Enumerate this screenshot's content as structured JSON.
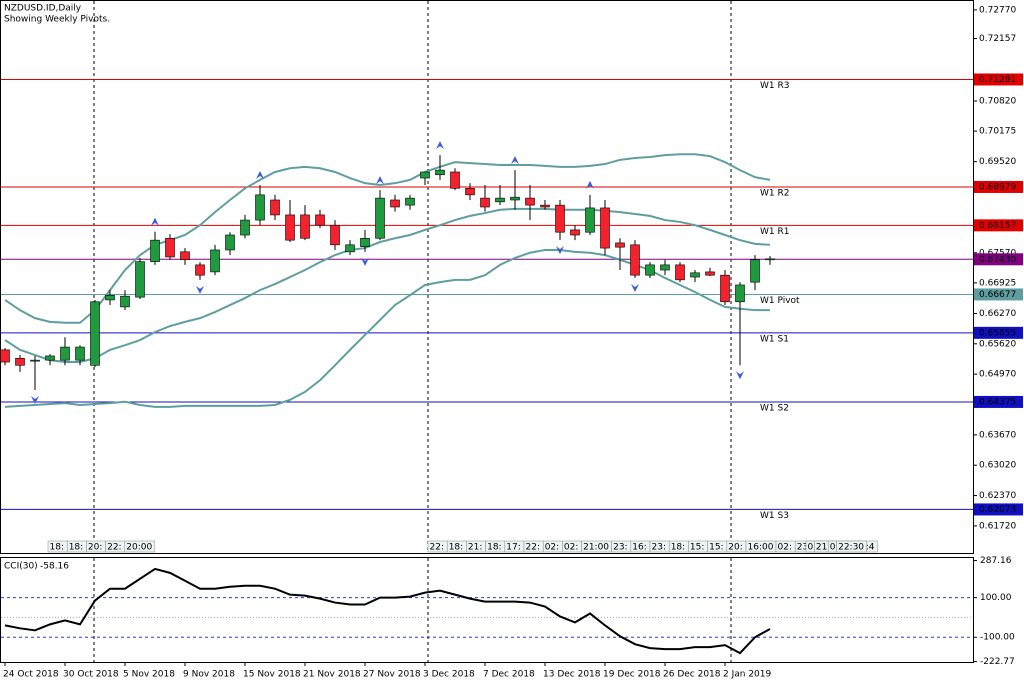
{
  "chart_data": [
    {
      "type": "candlestick",
      "title": "NZDUSD.ID,Daily",
      "subtitle": "Showing Weekly Pivots.",
      "categories": [
        "24 Oct 2018",
        null,
        null,
        null,
        "30 Oct 2018",
        null,
        null,
        null,
        "5 Nov 2018",
        null,
        null,
        null,
        "9 Nov 2018",
        null,
        null,
        null,
        "15 Nov 2018",
        null,
        null,
        null,
        "21 Nov 2018",
        null,
        null,
        null,
        "27 Nov 2018",
        null,
        null,
        null,
        "3 Dec 2018",
        null,
        null,
        null,
        "7 Dec 2018",
        null,
        null,
        null,
        "13 Dec 2018",
        null,
        null,
        null,
        "19 Dec 2018",
        null,
        null,
        null,
        "26 Dec 2018",
        null,
        null,
        null,
        "2 Jan 2019",
        null,
        null,
        null
      ],
      "open": [
        0.6549,
        0.6531,
        0.6525,
        0.6527,
        0.6527,
        0.6527,
        0.6516,
        0.6656,
        0.6641,
        0.6662,
        0.6738,
        0.6788,
        0.6759,
        0.6731,
        0.6716,
        0.6763,
        0.6795,
        0.6827,
        0.687,
        0.6838,
        0.6838,
        0.6838,
        0.6816,
        0.6759,
        0.677,
        0.6788,
        0.687,
        0.6859,
        0.6917,
        0.6924,
        0.693,
        0.6895,
        0.6874,
        0.6866,
        0.687,
        0.6874,
        0.6859,
        0.6859,
        0.6806,
        0.6801,
        0.6853,
        0.6778,
        0.6774,
        0.6709,
        0.672,
        0.6731,
        0.6705,
        0.6716,
        0.6709,
        0.6652,
        0.6694,
        0.6742
      ],
      "high": [
        0.6553,
        0.6538,
        0.6536,
        0.654,
        0.6576,
        0.6559,
        0.6656,
        0.6677,
        0.6677,
        0.6746,
        0.6802,
        0.6797,
        0.6767,
        0.6737,
        0.6774,
        0.6801,
        0.6838,
        0.6902,
        0.6881,
        0.687,
        0.6859,
        0.6849,
        0.6827,
        0.6784,
        0.6806,
        0.6891,
        0.6881,
        0.6881,
        0.693,
        0.6966,
        0.6938,
        0.6906,
        0.6902,
        0.6902,
        0.6934,
        0.6902,
        0.687,
        0.687,
        0.6816,
        0.6881,
        0.687,
        0.6788,
        0.6784,
        0.6737,
        0.6742,
        0.6737,
        0.672,
        0.6725,
        0.672,
        0.6694,
        0.6752,
        0.675
      ],
      "low": [
        0.6516,
        0.6502,
        0.6463,
        0.6516,
        0.6516,
        0.6516,
        0.6512,
        0.6645,
        0.6634,
        0.6658,
        0.6731,
        0.6742,
        0.6731,
        0.6699,
        0.6709,
        0.6752,
        0.6788,
        0.6816,
        0.6827,
        0.678,
        0.6784,
        0.681,
        0.6763,
        0.6752,
        0.6759,
        0.6784,
        0.6845,
        0.6849,
        0.6902,
        0.6913,
        0.6891,
        0.687,
        0.6845,
        0.6859,
        0.6849,
        0.6827,
        0.6849,
        0.6784,
        0.6784,
        0.6795,
        0.6752,
        0.672,
        0.6703,
        0.6703,
        0.6709,
        0.6694,
        0.6694,
        0.6707,
        0.6645,
        0.6516,
        0.6677,
        0.6731
      ],
      "close": [
        0.6523,
        0.6516,
        0.6527,
        0.6536,
        0.6555,
        0.6555,
        0.6652,
        0.6666,
        0.6664,
        0.6738,
        0.6784,
        0.6748,
        0.6742,
        0.6709,
        0.6763,
        0.6795,
        0.6827,
        0.6881,
        0.6838,
        0.6784,
        0.6788,
        0.6816,
        0.6774,
        0.6774,
        0.6788,
        0.6874,
        0.6855,
        0.6874,
        0.693,
        0.6934,
        0.6895,
        0.6881,
        0.6855,
        0.6874,
        0.6876,
        0.6859,
        0.6855,
        0.6801,
        0.6795,
        0.6853,
        0.6767,
        0.6769,
        0.6709,
        0.6731,
        0.6731,
        0.6699,
        0.6714,
        0.6709,
        0.6652,
        0.6688,
        0.6742,
        0.6744
      ],
      "up_color": "#1f9a3f",
      "down_color": "#f5222d",
      "bands": [
        {
          "color": "#5f9ea0",
          "values": [
            0.6656,
            0.6634,
            0.6617,
            0.6609,
            0.6607,
            0.6607,
            0.6634,
            0.6677,
            0.672,
            0.6752,
            0.6774,
            0.6784,
            0.6795,
            0.6816,
            0.6844,
            0.687,
            0.6895,
            0.6913,
            0.693,
            0.6938,
            0.6941,
            0.6938,
            0.693,
            0.6917,
            0.6906,
            0.6902,
            0.6906,
            0.6913,
            0.693,
            0.6941,
            0.6951,
            0.6949,
            0.6947,
            0.6945,
            0.6945,
            0.6945,
            0.6943,
            0.6941,
            0.6941,
            0.6943,
            0.6947,
            0.6956,
            0.696,
            0.6962,
            0.6966,
            0.6968,
            0.6968,
            0.6964,
            0.6951,
            0.6934,
            0.6919,
            0.6913
          ]
        },
        {
          "color": "#5f9ea0",
          "values": [
            0.657,
            0.6549,
            0.6538,
            0.6527,
            0.6523,
            0.6523,
            0.6531,
            0.6549,
            0.6559,
            0.657,
            0.6587,
            0.66,
            0.6609,
            0.6617,
            0.663,
            0.6645,
            0.666,
            0.6677,
            0.669,
            0.6705,
            0.672,
            0.6737,
            0.6752,
            0.6763,
            0.6767,
            0.678,
            0.6788,
            0.6795,
            0.6806,
            0.6816,
            0.6827,
            0.6836,
            0.6842,
            0.6849,
            0.6851,
            0.6851,
            0.6851,
            0.6849,
            0.6849,
            0.6849,
            0.6847,
            0.6844,
            0.684,
            0.6836,
            0.6827,
            0.6823,
            0.6816,
            0.6806,
            0.6795,
            0.6784,
            0.6776,
            0.6774
          ]
        },
        {
          "color": "#5f9ea0",
          "values": [
            0.6427,
            0.6429,
            0.6431,
            0.6433,
            0.6435,
            0.6431,
            0.6433,
            0.6435,
            0.6438,
            0.6431,
            0.6427,
            0.6427,
            0.6429,
            0.6429,
            0.6429,
            0.6429,
            0.6429,
            0.6429,
            0.6431,
            0.6442,
            0.6459,
            0.6484,
            0.6516,
            0.6549,
            0.6581,
            0.6613,
            0.6645,
            0.6666,
            0.6688,
            0.6694,
            0.6699,
            0.6699,
            0.6709,
            0.6731,
            0.6746,
            0.6757,
            0.6763,
            0.6763,
            0.6759,
            0.6757,
            0.6752,
            0.6742,
            0.6731,
            0.672,
            0.6703,
            0.6688,
            0.6673,
            0.6656,
            0.6641,
            0.6637,
            0.6634,
            0.6634
          ]
        }
      ],
      "fractal_color": "#3b5bdb",
      "fractal_up": [
        null,
        null,
        null,
        null,
        null,
        null,
        null,
        null,
        null,
        null,
        0.6802,
        null,
        null,
        null,
        null,
        null,
        null,
        0.6902,
        null,
        null,
        null,
        null,
        null,
        null,
        null,
        0.6891,
        null,
        null,
        null,
        0.6966,
        null,
        null,
        null,
        null,
        0.6934,
        null,
        null,
        null,
        null,
        0.6881,
        null,
        null,
        null,
        null,
        null,
        null,
        null,
        null,
        null,
        null,
        null,
        null
      ],
      "fractal_down": [
        null,
        null,
        0.6463,
        null,
        null,
        null,
        null,
        null,
        null,
        null,
        null,
        null,
        null,
        0.6699,
        null,
        null,
        null,
        null,
        null,
        null,
        null,
        null,
        null,
        null,
        0.6759,
        null,
        null,
        null,
        null,
        null,
        null,
        null,
        null,
        null,
        null,
        null,
        null,
        0.6784,
        null,
        null,
        null,
        null,
        0.6703,
        null,
        null,
        null,
        null,
        null,
        null,
        0.6516,
        null,
        null
      ],
      "pivots": [
        {
          "name": "W1 R3",
          "value": 0.71281,
          "color": "#e00000",
          "text_color": "#ffffff"
        },
        {
          "name": "W1 R2",
          "value": 0.68979,
          "color": "#e00000",
          "text_color": "#ffffff"
        },
        {
          "name": "W1 R1",
          "value": 0.68157,
          "color": "#e00000",
          "text_color": "#ffffff"
        },
        {
          "name": "W1 Pivot",
          "value": 0.66677,
          "color": "#5f9ea0",
          "text_color": "#000000"
        },
        {
          "name": "W1 S1",
          "value": 0.65855,
          "color": "#1010c0",
          "text_color": "#ffffff"
        },
        {
          "name": "W1 S2",
          "value": 0.64375,
          "color": "#1010c0",
          "text_color": "#ffffff"
        },
        {
          "name": "W1 S3",
          "value": 0.62073,
          "color": "#1010c0",
          "text_color": "#ffffff"
        }
      ],
      "current_price": {
        "value": 0.6743,
        "label": "0.67430",
        "color": "#800080"
      },
      "time_labels": [
        [
          "18:",
          "18:",
          "20:",
          "22:",
          "20:00"
        ],
        [
          "22:",
          "18:",
          "21:",
          "18:",
          "17:",
          "22:",
          "02:",
          "02:",
          "21:00",
          "23:",
          "16:",
          "23:",
          "18:",
          "15:",
          "15:",
          "20:",
          "16:00",
          "02:",
          "23:",
          "22:",
          "22:",
          "19:4"
        ],
        [
          "0",
          "21",
          "0",
          "22:30"
        ]
      ],
      "ylim": [
        0.6114,
        0.7294
      ],
      "yticks": [
        {
          "value": 0.7277,
          "label": "0.72770"
        },
        {
          "value": 0.72157,
          "label": "0.72157"
        },
        {
          "value": 0.7082,
          "label": "0.70820"
        },
        {
          "value": 0.70175,
          "label": "0.70175"
        },
        {
          "value": 0.6952,
          "label": "0.69520"
        },
        {
          "value": 0.6757,
          "label": "0.67570"
        },
        {
          "value": 0.66925,
          "label": "0.66925"
        },
        {
          "value": 0.6627,
          "label": "0.66270"
        },
        {
          "value": 0.6562,
          "label": "0.65620"
        },
        {
          "value": 0.6497,
          "label": "0.64970"
        },
        {
          "value": 0.6367,
          "label": "0.63670"
        },
        {
          "value": 0.6302,
          "label": "0.63020"
        },
        {
          "value": 0.6237,
          "label": "0.62370"
        },
        {
          "value": 0.6172,
          "label": "0.61720"
        }
      ]
    },
    {
      "type": "line",
      "title": "CCI(30)",
      "series": [
        {
          "color": "#000000",
          "values": [
            -40,
            -55,
            -65,
            -35,
            -15,
            -35,
            85,
            145,
            145,
            195,
            245,
            225,
            185,
            145,
            145,
            155,
            160,
            160,
            145,
            115,
            110,
            95,
            75,
            65,
            65,
            100,
            100,
            105,
            125,
            135,
            115,
            95,
            80,
            80,
            80,
            75,
            55,
            5,
            -25,
            20,
            -40,
            -95,
            -135,
            -155,
            -160,
            -160,
            -150,
            -150,
            -140,
            -180,
            -100,
            -58.16
          ]
        }
      ],
      "ylim": [
        -225,
        300
      ],
      "yticks": [
        {
          "value": 287.16,
          "label": "287.16"
        },
        {
          "value": 100,
          "label": "100.00"
        },
        {
          "value": -100,
          "label": "-100.00"
        },
        {
          "value": -222.77,
          "label": "-222.77"
        }
      ],
      "levels": [
        100,
        0,
        -100
      ],
      "level_color": "#2b3bd0",
      "zero_color": "#aaaaaa"
    }
  ]
}
